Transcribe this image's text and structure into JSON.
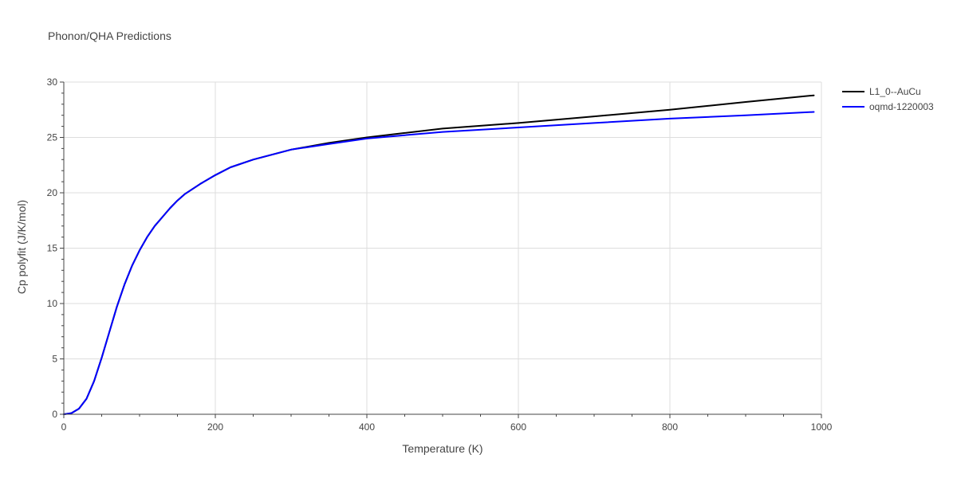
{
  "chart_data": {
    "type": "line",
    "title": "Phonon/QHA Predictions",
    "xlabel": "Temperature (K)",
    "ylabel": "Cp polyfit (J/K/mol)",
    "xlim": [
      0,
      1000
    ],
    "ylim": [
      0,
      30
    ],
    "x_ticks": [
      0,
      200,
      400,
      600,
      800,
      1000
    ],
    "y_ticks": [
      0,
      5,
      10,
      15,
      20,
      25,
      30
    ],
    "grid": true,
    "legend_position": "top-right",
    "series": [
      {
        "name": "L1_0--AuCu",
        "color": "#000000",
        "x": [
          0,
          10,
          20,
          30,
          40,
          50,
          60,
          70,
          80,
          90,
          100,
          110,
          120,
          130,
          140,
          150,
          160,
          180,
          200,
          220,
          250,
          300,
          350,
          400,
          450,
          500,
          600,
          700,
          800,
          900,
          990
        ],
        "y": [
          0,
          0.1,
          0.5,
          1.4,
          3.0,
          5.1,
          7.4,
          9.7,
          11.7,
          13.4,
          14.8,
          16.0,
          17.0,
          17.8,
          18.6,
          19.3,
          19.9,
          20.8,
          21.6,
          22.3,
          23.0,
          23.9,
          24.5,
          25.0,
          25.4,
          25.8,
          26.3,
          26.9,
          27.5,
          28.2,
          28.8
        ]
      },
      {
        "name": "oqmd-1220003",
        "color": "#0000ff",
        "x": [
          0,
          10,
          20,
          30,
          40,
          50,
          60,
          70,
          80,
          90,
          100,
          110,
          120,
          130,
          140,
          150,
          160,
          180,
          200,
          220,
          250,
          300,
          350,
          400,
          450,
          500,
          600,
          700,
          800,
          900,
          990
        ],
        "y": [
          0,
          0.1,
          0.5,
          1.4,
          3.0,
          5.1,
          7.4,
          9.7,
          11.7,
          13.4,
          14.8,
          16.0,
          17.0,
          17.8,
          18.6,
          19.3,
          19.9,
          20.8,
          21.6,
          22.3,
          23.0,
          23.9,
          24.4,
          24.9,
          25.2,
          25.5,
          25.9,
          26.3,
          26.7,
          27.0,
          27.3
        ]
      }
    ]
  }
}
